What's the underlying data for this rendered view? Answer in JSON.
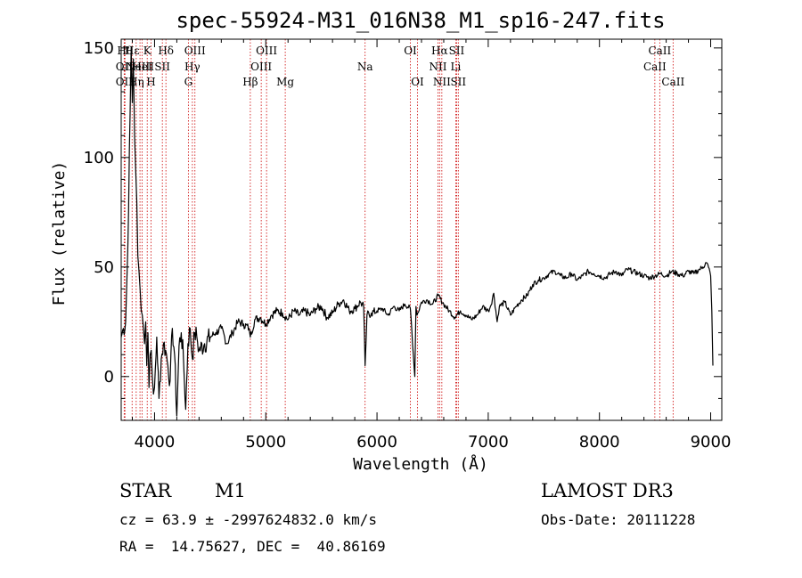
{
  "chart_data": {
    "type": "line",
    "title": "spec-55924-M31_016N38_M1_sp16-247.fits",
    "xlabel": "Wavelength (Å)",
    "ylabel": "Flux (relative)",
    "xlim": [
      3700,
      9100
    ],
    "ylim": [
      -20,
      154
    ],
    "xticks": [
      4000,
      5000,
      6000,
      7000,
      8000,
      9000
    ],
    "yticks": [
      0,
      50,
      100,
      150
    ],
    "grid": false,
    "series": [
      {
        "x": [
          3700,
          3720,
          3740,
          3760,
          3780,
          3790,
          3800,
          3810,
          3820,
          3830,
          3840,
          3850,
          3860,
          3870,
          3880,
          3890,
          3900,
          3910,
          3920,
          3930,
          3940,
          3950,
          3960,
          3970,
          3980,
          3990,
          4000,
          4020,
          4040,
          4060,
          4080,
          4100,
          4120,
          4140,
          4160,
          4180,
          4200,
          4220,
          4240,
          4260,
          4280,
          4300,
          4320,
          4340,
          4360,
          4380,
          4400,
          4450,
          4500,
          4550,
          4600,
          4650,
          4700,
          4750,
          4800,
          4850,
          4861,
          4900,
          4950,
          5000,
          5050,
          5100,
          5150,
          5200,
          5250,
          5300,
          5350,
          5400,
          5450,
          5500,
          5550,
          5600,
          5650,
          5700,
          5750,
          5800,
          5850,
          5880,
          5893,
          5910,
          5950,
          6000,
          6050,
          6100,
          6150,
          6200,
          6250,
          6300,
          6340,
          6350,
          6360,
          6400,
          6450,
          6500,
          6550,
          6600,
          6650,
          6700,
          6750,
          6800,
          6850,
          6900,
          6950,
          7000,
          7020,
          7050,
          7080,
          7100,
          7150,
          7200,
          7250,
          7300,
          7350,
          7400,
          7450,
          7500,
          7550,
          7600,
          7650,
          7700,
          7750,
          7800,
          7850,
          7900,
          7950,
          8000,
          8050,
          8100,
          8150,
          8200,
          8250,
          8300,
          8350,
          8400,
          8450,
          8500,
          8550,
          8600,
          8650,
          8700,
          8750,
          8800,
          8850,
          8900,
          8930,
          8960,
          8980,
          9000,
          9010,
          9020
        ],
        "y": [
          18,
          22,
          25,
          60,
          120,
          150,
          125,
          145,
          110,
          95,
          80,
          55,
          48,
          40,
          30,
          28,
          22,
          15,
          25,
          5,
          20,
          -5,
          10,
          12,
          0,
          -8,
          -5,
          18,
          -10,
          8,
          15,
          12,
          5,
          -2,
          22,
          10,
          -18,
          14,
          20,
          8,
          -15,
          15,
          22,
          8,
          20,
          18,
          12,
          15,
          18,
          20,
          22,
          15,
          20,
          25,
          24,
          22,
          18,
          26,
          27,
          24,
          28,
          30,
          29,
          26,
          30,
          28,
          30,
          28,
          31,
          32,
          27,
          29,
          33,
          35,
          30,
          31,
          34,
          32,
          5,
          28,
          29,
          30,
          31,
          28,
          32,
          30,
          33,
          31,
          0,
          32,
          28,
          34,
          35,
          33,
          37,
          33,
          30,
          27,
          30,
          28,
          26,
          28,
          32,
          30,
          32,
          38,
          25,
          32,
          34,
          28,
          32,
          35,
          37,
          42,
          44,
          45,
          47,
          48,
          46,
          45,
          47,
          44,
          46,
          48,
          47,
          46,
          45,
          47,
          48,
          46,
          49,
          48,
          47,
          46,
          45,
          46,
          47,
          46,
          48,
          47,
          46,
          48,
          47,
          49,
          50,
          52,
          50,
          46,
          30,
          5
        ]
      }
    ],
    "lines": [
      {
        "wl": 3734,
        "label": "Hθ",
        "row": 0
      },
      {
        "wl": 3727,
        "label": "OII",
        "row": 1
      },
      {
        "wl": 3727,
        "label": "OII",
        "row": 2
      },
      {
        "wl": 3798,
        "label": "Hε",
        "row": 0
      },
      {
        "wl": 3835,
        "label": "Hη",
        "row": 2
      },
      {
        "wl": 3869,
        "label": "NeIII",
        "row": 1
      },
      {
        "wl": 3889,
        "label": "HeI",
        "row": 1
      },
      {
        "wl": 3934,
        "label": "K",
        "row": 0
      },
      {
        "wl": 3968,
        "label": "H",
        "row": 2
      },
      {
        "wl": 4070,
        "label": "SII",
        "row": 1
      },
      {
        "wl": 4102,
        "label": "Hδ",
        "row": 0
      },
      {
        "wl": 4304,
        "label": "G",
        "row": 2
      },
      {
        "wl": 4340,
        "label": "Hγ",
        "row": 1
      },
      {
        "wl": 4363,
        "label": "OIII",
        "row": 0
      },
      {
        "wl": 4861,
        "label": "Hβ",
        "row": 2
      },
      {
        "wl": 4959,
        "label": "OIII",
        "row": 1
      },
      {
        "wl": 5007,
        "label": "OIII",
        "row": 0
      },
      {
        "wl": 5175,
        "label": "Mg",
        "row": 2
      },
      {
        "wl": 5893,
        "label": "Na",
        "row": 1
      },
      {
        "wl": 6300,
        "label": "OI",
        "row": 0
      },
      {
        "wl": 6364,
        "label": "OI",
        "row": 2
      },
      {
        "wl": 6548,
        "label": "NII",
        "row": 1
      },
      {
        "wl": 6563,
        "label": "Hα",
        "row": 0
      },
      {
        "wl": 6583,
        "label": "NII",
        "row": 2
      },
      {
        "wl": 6708,
        "label": "Li",
        "row": 1
      },
      {
        "wl": 6716,
        "label": "SII",
        "row": 0
      },
      {
        "wl": 6731,
        "label": "SII",
        "row": 2
      },
      {
        "wl": 8498,
        "label": "CaII",
        "row": 1
      },
      {
        "wl": 8542,
        "label": "CaII",
        "row": 0
      },
      {
        "wl": 8662,
        "label": "CaII",
        "row": 2
      }
    ]
  },
  "info": {
    "object_class": "STAR",
    "subclass": "M1",
    "survey": "LAMOST DR3",
    "velocity": "cz = 63.9 ± -2997624832.0 km/s",
    "obs_date": "Obs-Date: 20111228",
    "coords": "RA =  14.75627, DEC =  40.86169"
  },
  "colors": {
    "spectrum": "#000000",
    "marker_line": "#cc0000",
    "axes": "#000000",
    "background": "#ffffff"
  }
}
